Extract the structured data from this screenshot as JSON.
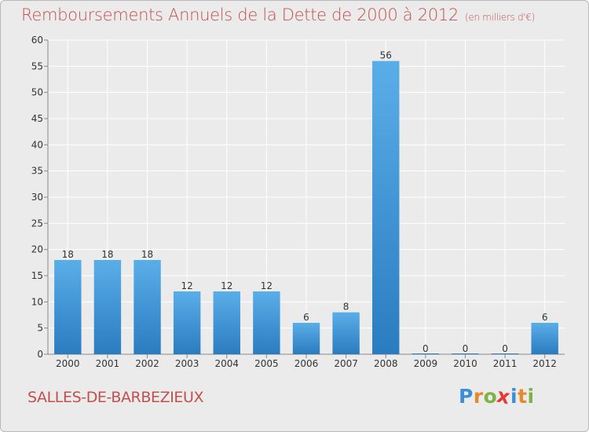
{
  "title": "Remboursements Annuels de la Dette de 2000 à 2012",
  "title_unit": "(en milliers d'€)",
  "commune": "SALLES-DE-BARBEZIEUX",
  "logo": {
    "letters": [
      "P",
      "r",
      "o",
      "x",
      "i",
      "t",
      "i"
    ],
    "colors": [
      "#3b8fd4",
      "#e8892b",
      "#7cb342",
      "#e53935",
      "#3b8fd4",
      "#e8892b",
      "#7cb342"
    ]
  },
  "colors": {
    "title": "#c0504d",
    "bar_top": "#5aaee8",
    "bar_bottom": "#2a7cc0",
    "background": "#ebebeb"
  },
  "chart_data": {
    "type": "bar",
    "categories": [
      "2000",
      "2001",
      "2002",
      "2003",
      "2004",
      "2005",
      "2006",
      "2007",
      "2008",
      "2009",
      "2010",
      "2011",
      "2012"
    ],
    "values": [
      18,
      18,
      18,
      12,
      12,
      12,
      6,
      8,
      56,
      0,
      0,
      0,
      6
    ],
    "ylim": [
      0,
      60
    ],
    "yticks": [
      0,
      5,
      10,
      15,
      20,
      25,
      30,
      35,
      40,
      45,
      50,
      55,
      60
    ],
    "grid": true
  }
}
